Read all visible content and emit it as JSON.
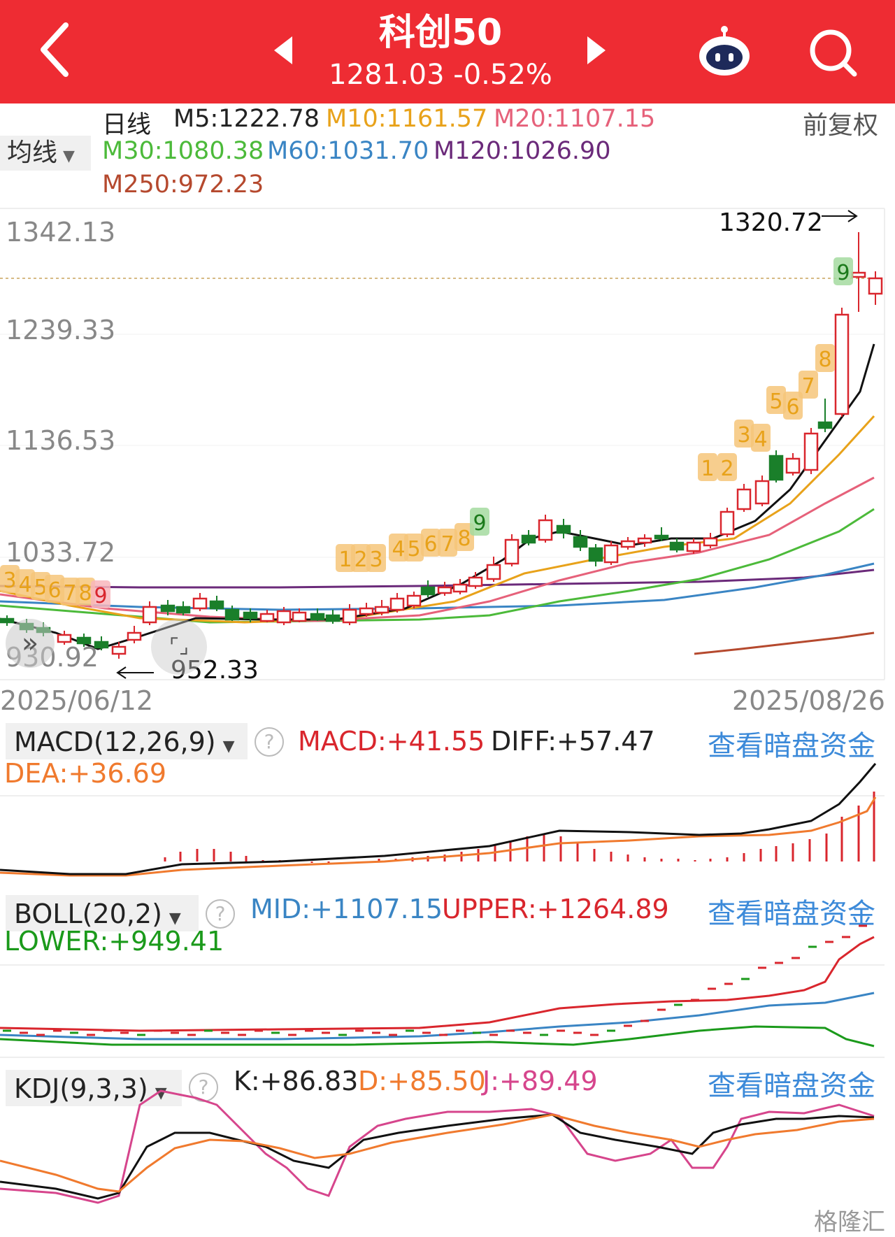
{
  "header": {
    "title": "科创50",
    "quote": "1281.03 -0.52%",
    "back_icon": "chevron-left-icon",
    "prev_icon": "triangle-left-icon",
    "next_icon": "triangle-right-icon",
    "robot_icon": "robot-assistant-icon",
    "search_icon": "search-icon",
    "color": "#ee2c33"
  },
  "ma": {
    "period": "日线",
    "m5": "M5:1222.78",
    "m10": "M10:1161.57",
    "m20": "M20:1107.15",
    "m30": "M30:1080.38",
    "m60": "M60:1031.70",
    "m120": "M120:1026.90",
    "m250": "M250:972.23",
    "selector": "均线",
    "adjust": "前复权"
  },
  "kline": {
    "y_labels": [
      "1342.13",
      "1239.33",
      "1136.53",
      "1033.72",
      "930.92"
    ],
    "high_mark": "1320.72",
    "low_mark": "952.33",
    "start_date": "2025/06/12",
    "end_date": "2025/08/26",
    "nine_marks": [
      "1",
      "2",
      "3",
      "4",
      "5",
      "6",
      "7",
      "8",
      "9"
    ]
  },
  "macd": {
    "selector": "MACD(12,26,9)",
    "macd": "MACD:+41.55",
    "diff": "DIFF:+57.47",
    "dea": "DEA:+36.69",
    "link": "查看暗盘资金"
  },
  "boll": {
    "selector": "BOLL(20,2)",
    "mid": "MID:+1107.15",
    "upper": "UPPER:+1264.89",
    "lower": "LOWER:+949.41",
    "link": "查看暗盘资金"
  },
  "kdj": {
    "selector": "KDJ(9,3,3)",
    "k": "K:+86.83",
    "d": "D:+85.50",
    "j": "J:+89.49",
    "link": "查看暗盘资金"
  },
  "watermark": "格隆汇"
}
